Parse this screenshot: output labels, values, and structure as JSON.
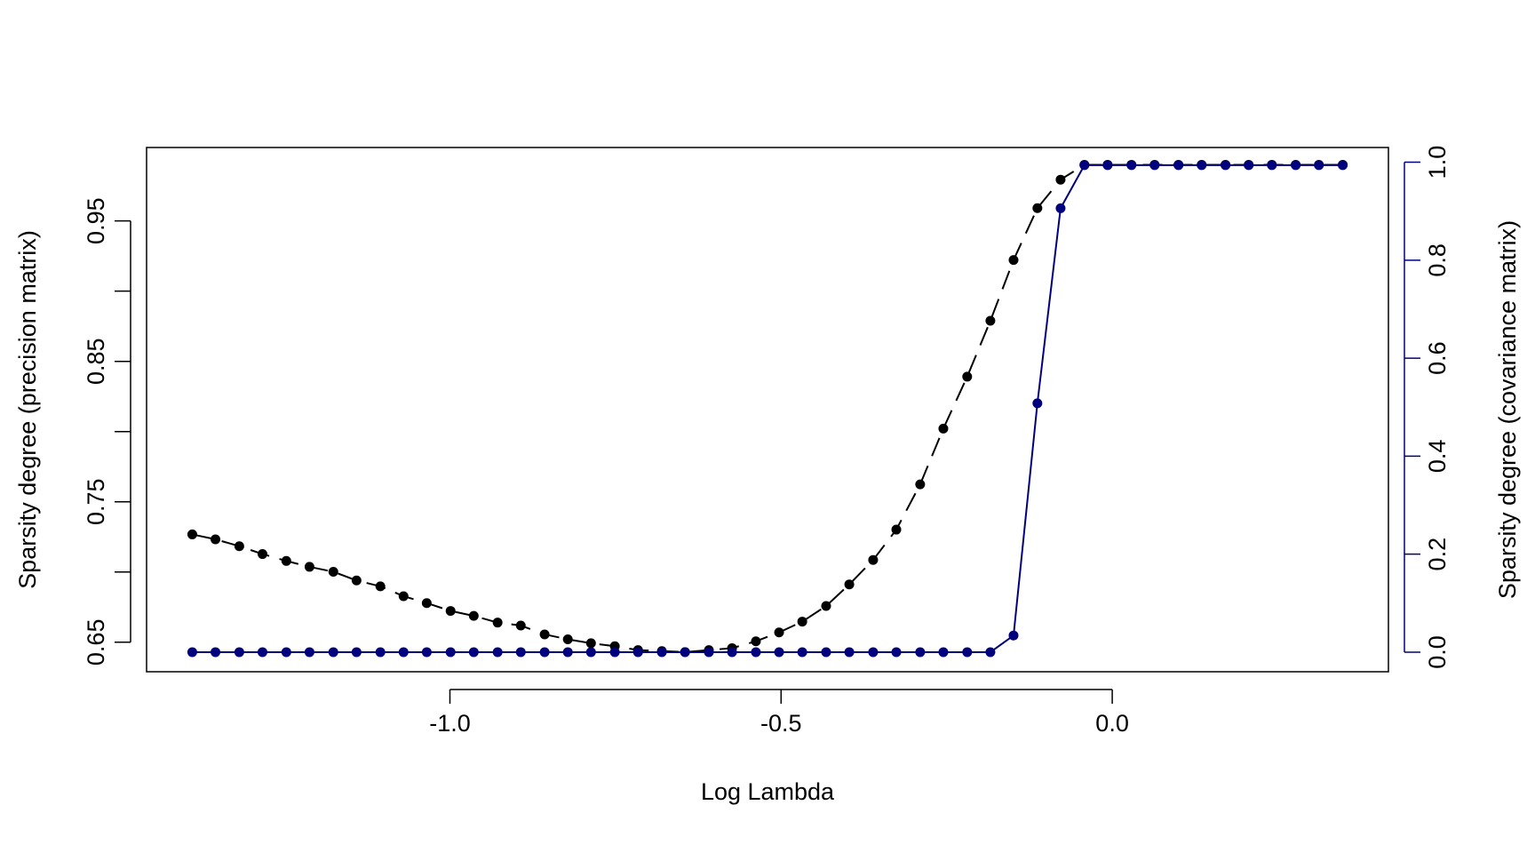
{
  "chart_data": {
    "type": "line",
    "xlabel": "Log Lambda",
    "ylabel": "Sparsity degree (precision matrix)",
    "y2label": "Sparsity degree (covariance matrix)",
    "x": [
      -1.389,
      -1.354,
      -1.318,
      -1.283,
      -1.247,
      -1.212,
      -1.176,
      -1.141,
      -1.105,
      -1.07,
      -1.035,
      -0.999,
      -0.964,
      -0.928,
      -0.893,
      -0.857,
      -0.822,
      -0.787,
      -0.751,
      -0.716,
      -0.68,
      -0.645,
      -0.609,
      -0.574,
      -0.538,
      -0.503,
      -0.468,
      -0.432,
      -0.397,
      -0.361,
      -0.326,
      -0.29,
      -0.255,
      -0.219,
      -0.184,
      -0.149,
      -0.113,
      -0.078,
      -0.042,
      -0.007,
      0.029,
      0.064,
      0.1,
      0.135,
      0.171,
      0.206,
      0.241,
      0.277,
      0.312,
      0.348
    ],
    "series": [
      {
        "color": "#000000",
        "dash": true,
        "values": [
          0.7268,
          0.7233,
          0.7184,
          0.7128,
          0.7079,
          0.7037,
          0.7002,
          0.694,
          0.6898,
          0.6828,
          0.6779,
          0.6723,
          0.6688,
          0.664,
          0.6619,
          0.6556,
          0.6521,
          0.6493,
          0.6472,
          0.6444,
          0.6437,
          0.643,
          0.6444,
          0.6458,
          0.6507,
          0.657,
          0.6647,
          0.6758,
          0.6912,
          0.7086,
          0.7302,
          0.7624,
          0.8021,
          0.8391,
          0.8789,
          0.9222,
          0.9591,
          0.9794,
          0.99,
          0.99,
          0.99,
          0.99,
          0.99,
          0.99,
          0.99,
          0.99,
          0.99,
          0.99,
          0.99,
          0.99
        ]
      },
      {
        "color": "#00007f",
        "axis": "y2",
        "dash": false,
        "values": [
          0,
          0,
          0,
          0,
          0,
          0,
          0,
          0,
          0,
          0,
          0,
          0,
          0,
          0,
          0,
          0,
          0,
          0,
          0,
          0,
          0,
          0,
          0,
          0,
          0,
          0,
          0,
          0,
          0,
          0,
          0,
          0,
          0,
          0,
          0,
          0.034,
          0.508,
          0.906,
          0.994,
          0.994,
          0.994,
          0.994,
          0.994,
          0.994,
          0.994,
          0.994,
          0.994,
          0.994,
          0.994,
          0.994
        ]
      }
    ],
    "xlim": [
      -1.458,
      0.417
    ],
    "xticks": [
      {
        "value": -1.0,
        "label": "-1.0"
      },
      {
        "value": -0.5,
        "label": "-0.5"
      },
      {
        "value": 0.0,
        "label": "0.0"
      }
    ],
    "ylim": [
      0.629,
      1.0023
    ],
    "yticks": [
      0.65,
      0.75,
      0.85,
      0.95
    ],
    "yminor_ticks": [
      0.7,
      0.8,
      0.9
    ],
    "y2lim": [
      -0.04,
      1.03
    ],
    "y2ticks": [
      {
        "value": 0,
        "label": "0.0"
      },
      {
        "value": 0.2,
        "label": "0.2"
      },
      {
        "value": 0.4,
        "label": "0.4"
      },
      {
        "value": 0.6,
        "label": "0.6"
      },
      {
        "value": 0.8,
        "label": "0.8"
      },
      {
        "value": 1.0,
        "label": "1.0"
      }
    ],
    "y2color": "#00007f"
  }
}
